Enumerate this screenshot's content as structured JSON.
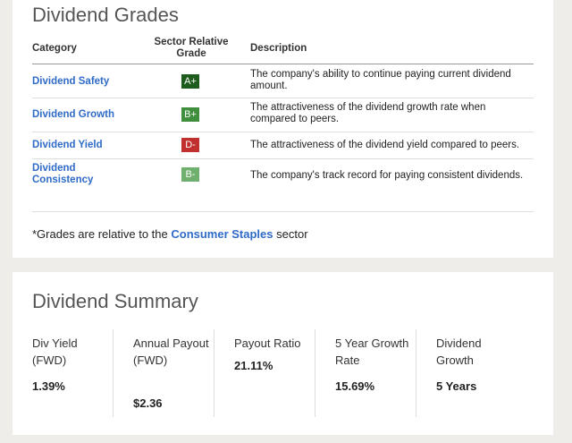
{
  "grades": {
    "title": "Dividend Grades",
    "headers": {
      "category": "Category",
      "grade": "Sector Relative Grade",
      "description": "Description"
    },
    "rows": [
      {
        "category": "Dividend Safety",
        "grade": "A+",
        "color": "#1e5c1e",
        "description": "The company's ability to continue paying current dividend amount."
      },
      {
        "category": "Dividend Growth",
        "grade": "B+",
        "color": "#3f8f3f",
        "description": "The attractiveness of the dividend growth rate when compared to peers."
      },
      {
        "category": "Dividend Yield",
        "grade": "D-",
        "color": "#c0302f",
        "description": "The attractiveness of the dividend yield compared to peers."
      },
      {
        "category": "Dividend Consistency",
        "grade": "B-",
        "color": "#6fb06f",
        "description": "The company's track record for paying consistent dividends."
      }
    ],
    "footnote_prefix": "*Grades are relative to the ",
    "footnote_link": "Consumer Staples",
    "footnote_suffix": " sector"
  },
  "summary": {
    "title": "Dividend Summary",
    "metrics": [
      {
        "label": "Div Yield (FWD)",
        "value": "1.39%"
      },
      {
        "label": "Annual Payout (FWD)",
        "value": "$2.36"
      },
      {
        "label": "Payout Ratio",
        "value": "21.11%"
      },
      {
        "label": "5 Year Growth Rate",
        "value": "15.69%"
      },
      {
        "label": "Dividend Growth",
        "value": "5 Years"
      }
    ]
  }
}
